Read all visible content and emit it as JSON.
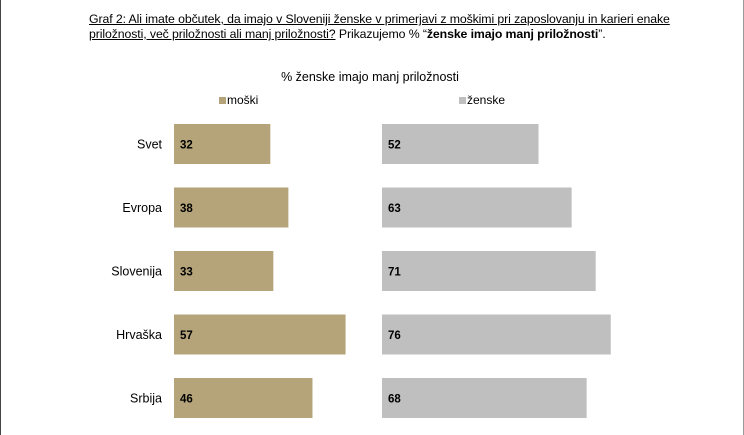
{
  "caption": {
    "figure_label": "Graf 2:",
    "question": "Ali imate občutek, da imajo v Sloveniji ženske v primerjavi z moškimi pri zaposlovanju in karieri enake priložnosti, več priložnosti ali manj priložnosti?",
    "prefix": "Prikazujemo % “",
    "emphasis": "ženske imajo manj priložnosti",
    "suffix": "”."
  },
  "chart_data": {
    "type": "bar",
    "orientation": "horizontal",
    "title": "% ženske imajo manj priložnosti",
    "categories": [
      "Svet",
      "Evropa",
      "Slovenija",
      "Hrvaška",
      "Srbija"
    ],
    "series": [
      {
        "name": "moški",
        "color": "#b5a47a",
        "values": [
          32,
          38,
          33,
          57,
          46
        ]
      },
      {
        "name": "ženske",
        "color": "#bfbfbf",
        "values": [
          52,
          63,
          71,
          76,
          68
        ]
      }
    ],
    "panels": "side-by-side, one per series",
    "legend": "above each panel",
    "xlim": [
      0,
      100
    ],
    "grid": false,
    "data_labels": true
  }
}
